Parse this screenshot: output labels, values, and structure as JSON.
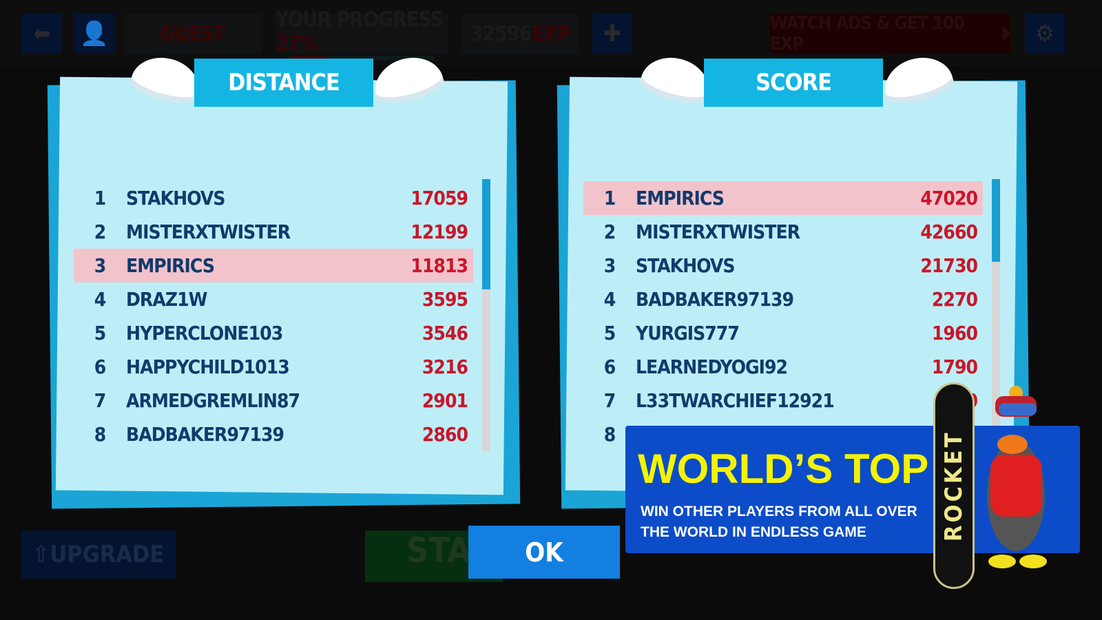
{
  "topbar": {
    "player": "GUEST",
    "progress_label": "YOUR PROGRESS",
    "progress": "27%",
    "progress_fraction": 0.27,
    "exp_value": "32596",
    "exp_unit": "EXP",
    "watch_ads": "WATCH ADS & GET 100 EXP"
  },
  "distance": {
    "title": "DISTANCE",
    "rows": [
      {
        "rank": "1",
        "name": "STAKHOVS",
        "value": "17059"
      },
      {
        "rank": "2",
        "name": "MISTERXTWISTER",
        "value": "12199"
      },
      {
        "rank": "3",
        "name": "EMPIRICS",
        "value": "11813",
        "highlight": true
      },
      {
        "rank": "4",
        "name": "DRAZ1W",
        "value": "3595"
      },
      {
        "rank": "5",
        "name": "HYPERCLONE103",
        "value": "3546"
      },
      {
        "rank": "6",
        "name": "HAPPYCHILD1013",
        "value": "3216"
      },
      {
        "rank": "7",
        "name": "ARMEDGREMLIN87",
        "value": "2901"
      },
      {
        "rank": "8",
        "name": "BADBAKER97139",
        "value": "2860"
      }
    ]
  },
  "score": {
    "title": "SCORE",
    "rows": [
      {
        "rank": "1",
        "name": "EMPIRICS",
        "value": "47020",
        "highlight": true
      },
      {
        "rank": "2",
        "name": "MISTERXTWISTER",
        "value": "42660"
      },
      {
        "rank": "3",
        "name": "STAKHOVS",
        "value": "21730"
      },
      {
        "rank": "4",
        "name": "BADBAKER97139",
        "value": "2270"
      },
      {
        "rank": "5",
        "name": "YURGIS777",
        "value": "1960"
      },
      {
        "rank": "6",
        "name": "LEARNEDYOGI92",
        "value": "1790"
      },
      {
        "rank": "7",
        "name": "L33TWARCHIEF12921",
        "value": "60"
      },
      {
        "rank": "8",
        "name": "",
        "value": ""
      }
    ]
  },
  "ok_label": "OK",
  "bottom": {
    "upgrade": "UPGRADE",
    "start": "STA"
  },
  "promo": {
    "title": "WORLD’S TOP",
    "text": "WIN OTHER PLAYERS FROM ALL OVER THE WORLD IN ENDLESS GAME",
    "board_text": "ROCKET"
  },
  "colors": {
    "header": "#14b5e3",
    "paper": "#bdeef7",
    "highlight": "#f3c3cb",
    "name": "#123a6b",
    "value": "#c9162a",
    "promo_bg": "#0c4cc8",
    "promo_title": "#f5f207"
  }
}
